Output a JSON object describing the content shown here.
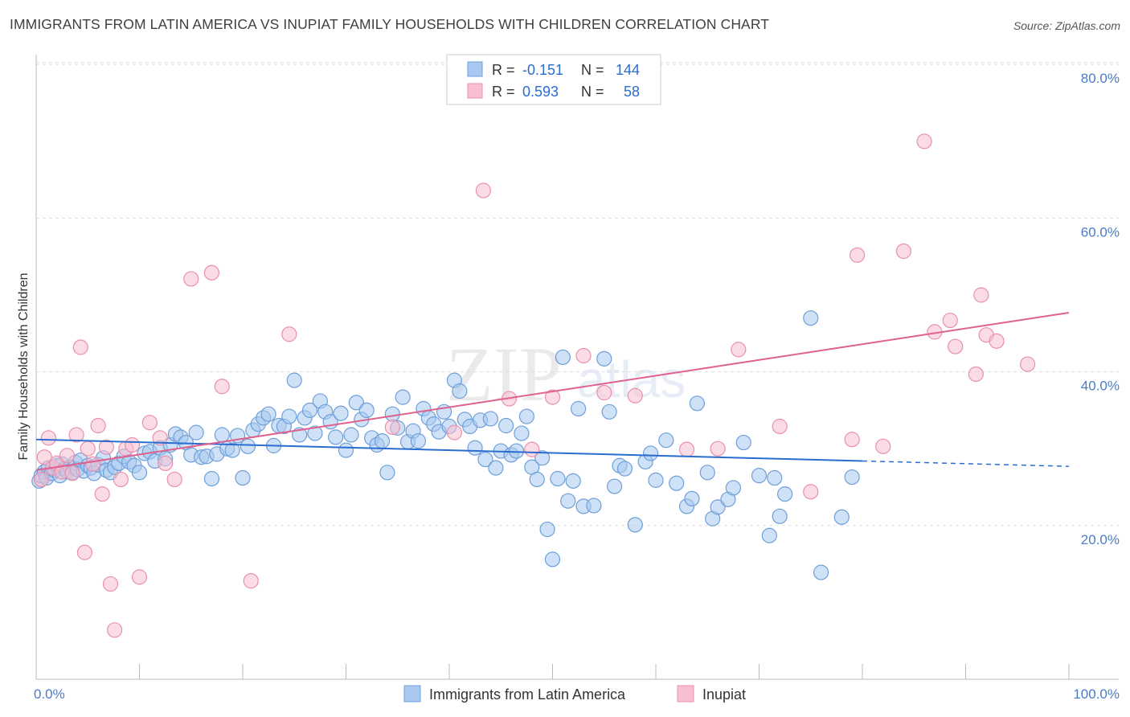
{
  "title": "IMMIGRANTS FROM LATIN AMERICA VS INUPIAT FAMILY HOUSEHOLDS WITH CHILDREN CORRELATION CHART",
  "source": "Source: ZipAtlas.com",
  "watermark": {
    "zip": "ZIP",
    "atlas": "atlas"
  },
  "colors": {
    "blue_fill": "#a8c8f0",
    "blue_stroke": "#6f9fd8",
    "blue_line": "#2a6dd0",
    "pink_fill": "#f7bfd0",
    "pink_stroke": "#e890ad",
    "pink_line": "#e0608e",
    "axis_label": "#4a7cc7",
    "grid": "#dddddd"
  },
  "legend": {
    "rows": [
      {
        "r_label": "R =",
        "r_value": "-0.151",
        "n_label": "N =",
        "n_value": "144"
      },
      {
        "r_label": "R =",
        "r_value": "0.593",
        "n_label": "N =",
        "n_value": "58"
      }
    ]
  },
  "chart_data": {
    "type": "scatter",
    "ylabel": "Family Households with Children",
    "x_tick_labels": [
      "0.0%",
      "100.0%"
    ],
    "y_tick_labels": [
      "20.0%",
      "40.0%",
      "60.0%",
      "80.0%"
    ],
    "xlim": [
      0,
      100
    ],
    "ylim": [
      0,
      82
    ],
    "y_gridlines": [
      20,
      40,
      60,
      80
    ],
    "series": [
      {
        "name": "Immigrants from Latin America",
        "color": "#a8c8f0",
        "points": [
          [
            0.3,
            25.8
          ],
          [
            0.5,
            26.5
          ],
          [
            0.8,
            27.0
          ],
          [
            1.0,
            26.2
          ],
          [
            1.2,
            27.5
          ],
          [
            1.5,
            26.8
          ],
          [
            1.8,
            27.2
          ],
          [
            2.0,
            27.8
          ],
          [
            2.3,
            26.5
          ],
          [
            2.5,
            28.0
          ],
          [
            2.8,
            27.4
          ],
          [
            3.0,
            27.0
          ],
          [
            3.3,
            27.6
          ],
          [
            3.5,
            26.9
          ],
          [
            3.8,
            28.2
          ],
          [
            4.0,
            27.3
          ],
          [
            4.3,
            28.5
          ],
          [
            4.6,
            27.1
          ],
          [
            5.0,
            27.8
          ],
          [
            5.3,
            27.5
          ],
          [
            5.6,
            26.8
          ],
          [
            6.0,
            27.9
          ],
          [
            6.5,
            28.8
          ],
          [
            6.8,
            27.2
          ],
          [
            7.2,
            26.9
          ],
          [
            7.6,
            27.6
          ],
          [
            8.0,
            28.1
          ],
          [
            8.5,
            29.0
          ],
          [
            9.0,
            28.3
          ],
          [
            9.5,
            27.8
          ],
          [
            10.0,
            26.9
          ],
          [
            10.5,
            29.4
          ],
          [
            11.0,
            29.6
          ],
          [
            11.5,
            28.4
          ],
          [
            12.0,
            30.1
          ],
          [
            12.5,
            28.7
          ],
          [
            13.0,
            30.5
          ],
          [
            13.5,
            31.9
          ],
          [
            14.0,
            31.5
          ],
          [
            14.5,
            30.8
          ],
          [
            15.0,
            29.2
          ],
          [
            15.5,
            32.1
          ],
          [
            16.0,
            28.9
          ],
          [
            16.5,
            29.0
          ],
          [
            17.0,
            26.1
          ],
          [
            17.5,
            29.3
          ],
          [
            18.0,
            31.8
          ],
          [
            18.5,
            30.0
          ],
          [
            19.0,
            29.8
          ],
          [
            19.5,
            31.7
          ],
          [
            20.0,
            26.2
          ],
          [
            20.5,
            30.3
          ],
          [
            21.0,
            32.4
          ],
          [
            21.5,
            33.2
          ],
          [
            22.0,
            34.0
          ],
          [
            22.5,
            34.5
          ],
          [
            23.0,
            30.4
          ],
          [
            23.5,
            33.0
          ],
          [
            24.0,
            32.9
          ],
          [
            24.5,
            34.2
          ],
          [
            25.0,
            38.9
          ],
          [
            25.5,
            31.8
          ],
          [
            26.0,
            34.0
          ],
          [
            26.5,
            35.0
          ],
          [
            27.0,
            32.0
          ],
          [
            27.5,
            36.2
          ],
          [
            28.0,
            34.8
          ],
          [
            28.5,
            33.5
          ],
          [
            29.0,
            31.5
          ],
          [
            29.5,
            34.6
          ],
          [
            30.0,
            29.8
          ],
          [
            30.5,
            31.8
          ],
          [
            31.0,
            36.0
          ],
          [
            31.5,
            33.8
          ],
          [
            32.0,
            35.0
          ],
          [
            32.5,
            31.4
          ],
          [
            33.0,
            30.5
          ],
          [
            33.5,
            31.0
          ],
          [
            34.0,
            26.9
          ],
          [
            34.5,
            34.5
          ],
          [
            35.0,
            32.7
          ],
          [
            35.5,
            36.7
          ],
          [
            36.0,
            30.9
          ],
          [
            36.5,
            32.3
          ],
          [
            37.0,
            31.0
          ],
          [
            37.5,
            35.2
          ],
          [
            38.0,
            34.0
          ],
          [
            38.5,
            33.2
          ],
          [
            39.0,
            32.2
          ],
          [
            39.5,
            34.8
          ],
          [
            40.0,
            32.9
          ],
          [
            40.5,
            38.9
          ],
          [
            41.0,
            37.5
          ],
          [
            41.5,
            33.8
          ],
          [
            42.0,
            32.9
          ],
          [
            42.5,
            30.1
          ],
          [
            43.0,
            33.7
          ],
          [
            43.5,
            28.6
          ],
          [
            44.0,
            33.9
          ],
          [
            44.5,
            27.5
          ],
          [
            45.0,
            29.7
          ],
          [
            45.5,
            33.0
          ],
          [
            46.0,
            29.2
          ],
          [
            46.5,
            29.7
          ],
          [
            47.0,
            32.0
          ],
          [
            47.5,
            34.2
          ],
          [
            48.0,
            27.6
          ],
          [
            48.5,
            26.0
          ],
          [
            49.0,
            28.8
          ],
          [
            49.5,
            19.5
          ],
          [
            50.0,
            15.6
          ],
          [
            50.5,
            26.1
          ],
          [
            51.0,
            41.9
          ],
          [
            51.5,
            23.2
          ],
          [
            52.0,
            25.8
          ],
          [
            52.5,
            35.2
          ],
          [
            53.0,
            22.5
          ],
          [
            54.0,
            22.6
          ],
          [
            55.0,
            41.7
          ],
          [
            55.5,
            34.8
          ],
          [
            56.0,
            25.1
          ],
          [
            56.5,
            27.8
          ],
          [
            57.0,
            27.4
          ],
          [
            58.0,
            20.1
          ],
          [
            59.0,
            28.3
          ],
          [
            59.5,
            29.4
          ],
          [
            60.0,
            25.9
          ],
          [
            61.0,
            31.1
          ],
          [
            62.0,
            25.5
          ],
          [
            63.0,
            22.5
          ],
          [
            63.5,
            23.5
          ],
          [
            64.0,
            35.9
          ],
          [
            65.0,
            26.9
          ],
          [
            65.5,
            20.9
          ],
          [
            66.0,
            22.4
          ],
          [
            67.0,
            23.4
          ],
          [
            67.5,
            24.9
          ],
          [
            68.5,
            30.8
          ],
          [
            70.0,
            26.5
          ],
          [
            71.0,
            18.7
          ],
          [
            71.5,
            26.2
          ],
          [
            72.0,
            21.2
          ],
          [
            72.5,
            24.1
          ],
          [
            75.0,
            47.0
          ],
          [
            76.0,
            13.9
          ],
          [
            78.0,
            21.1
          ],
          [
            79.0,
            26.3
          ]
        ]
      },
      {
        "name": "Inupiat",
        "color": "#f7bfd0",
        "points": [
          [
            0.5,
            26.0
          ],
          [
            0.8,
            28.9
          ],
          [
            1.2,
            31.4
          ],
          [
            1.6,
            27.5
          ],
          [
            2.0,
            28.1
          ],
          [
            2.5,
            27.0
          ],
          [
            3.0,
            29.1
          ],
          [
            3.5,
            26.8
          ],
          [
            3.9,
            31.8
          ],
          [
            4.3,
            43.2
          ],
          [
            4.7,
            16.5
          ],
          [
            5.0,
            30.0
          ],
          [
            5.5,
            28.0
          ],
          [
            6.0,
            33.0
          ],
          [
            6.4,
            24.1
          ],
          [
            6.8,
            30.2
          ],
          [
            7.2,
            12.4
          ],
          [
            7.6,
            6.4
          ],
          [
            8.2,
            26.0
          ],
          [
            8.7,
            30.0
          ],
          [
            9.3,
            30.5
          ],
          [
            10.0,
            13.3
          ],
          [
            11.0,
            33.4
          ],
          [
            12.0,
            31.4
          ],
          [
            12.5,
            28.1
          ],
          [
            13.4,
            26.0
          ],
          [
            15.0,
            52.1
          ],
          [
            17.0,
            52.9
          ],
          [
            18.0,
            38.1
          ],
          [
            20.8,
            12.8
          ],
          [
            24.5,
            44.9
          ],
          [
            34.5,
            32.8
          ],
          [
            40.5,
            32.1
          ],
          [
            43.3,
            63.6
          ],
          [
            45.8,
            36.5
          ],
          [
            48.0,
            29.9
          ],
          [
            50.0,
            36.7
          ],
          [
            53.0,
            42.1
          ],
          [
            55.0,
            37.3
          ],
          [
            58.0,
            36.9
          ],
          [
            63.0,
            29.9
          ],
          [
            66.0,
            30.0
          ],
          [
            68.0,
            42.9
          ],
          [
            72.0,
            32.9
          ],
          [
            75.0,
            24.4
          ],
          [
            79.0,
            31.2
          ],
          [
            79.5,
            55.2
          ],
          [
            82.0,
            30.3
          ],
          [
            84.0,
            55.7
          ],
          [
            86.0,
            70.0
          ],
          [
            87.0,
            45.2
          ],
          [
            88.5,
            46.7
          ],
          [
            89.0,
            43.3
          ],
          [
            91.0,
            39.7
          ],
          [
            91.5,
            50.0
          ],
          [
            92.0,
            44.8
          ],
          [
            93.0,
            44.0
          ],
          [
            96.0,
            41.0
          ]
        ]
      }
    ],
    "trendlines": [
      {
        "series": "Immigrants from Latin America",
        "x0": 0,
        "y0": 31.2,
        "x1": 80,
        "y1": 28.4,
        "dashed_to_x": 100,
        "dashed_to_y": 27.7
      },
      {
        "series": "Inupiat",
        "x0": 0,
        "y0": 27.2,
        "x1": 100,
        "y1": 47.7
      }
    ]
  }
}
